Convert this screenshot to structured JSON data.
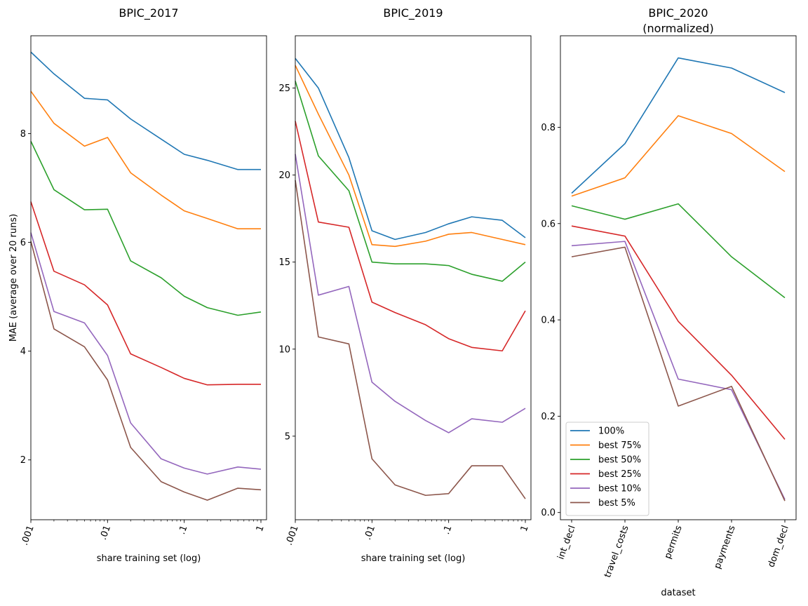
{
  "chart_data": [
    {
      "type": "line",
      "title": "BPIC_2017",
      "xlabel": "share training set (log)",
      "ylabel": "MAE (average over 20 runs)",
      "xscale": "log",
      "xlim": [
        0.001,
        1
      ],
      "ylim": [
        0.9,
        9.8
      ],
      "grid": false,
      "x": [
        0.001,
        0.002,
        0.005,
        0.01,
        0.02,
        0.05,
        0.1,
        0.2,
        0.5,
        1
      ],
      "xticks": [
        0.001,
        0.01,
        0.1,
        1
      ],
      "xtick_labels": [
        ".001",
        ".01",
        ".1",
        "1"
      ],
      "yticks": [
        2,
        4,
        6,
        8
      ],
      "ytick_labels": [
        "2",
        "4",
        "6",
        "8"
      ],
      "series": [
        {
          "name": "100%",
          "color": "#1f77b4",
          "values": [
            9.5,
            9.1,
            8.65,
            8.62,
            8.27,
            7.9,
            7.62,
            7.51,
            7.34,
            7.34
          ]
        },
        {
          "name": "best 75%",
          "color": "#ff7f0e",
          "values": [
            8.78,
            8.19,
            7.77,
            7.93,
            7.28,
            6.87,
            6.58,
            6.44,
            6.25,
            6.25
          ]
        },
        {
          "name": "best 50%",
          "color": "#2ca02c",
          "values": [
            7.86,
            6.97,
            6.6,
            6.61,
            5.66,
            5.35,
            5.01,
            4.8,
            4.66,
            4.72
          ]
        },
        {
          "name": "best 25%",
          "color": "#d62728",
          "values": [
            6.75,
            5.47,
            5.22,
            4.85,
            3.95,
            3.7,
            3.5,
            3.38,
            3.39,
            3.39
          ]
        },
        {
          "name": "best 10%",
          "color": "#9467bd",
          "values": [
            6.18,
            4.73,
            4.52,
            3.92,
            2.68,
            2.02,
            1.85,
            1.74,
            1.87,
            1.83
          ]
        },
        {
          "name": "best 5%",
          "color": "#8c564b",
          "values": [
            6.02,
            4.41,
            4.08,
            3.47,
            2.23,
            1.6,
            1.41,
            1.26,
            1.48,
            1.45
          ]
        }
      ]
    },
    {
      "type": "line",
      "title": "BPIC_2019",
      "xlabel": "share training set (log)",
      "ylabel": "",
      "xscale": "log",
      "xlim": [
        0.001,
        1
      ],
      "ylim": [
        0.2,
        28.0
      ],
      "grid": false,
      "x": [
        0.001,
        0.002,
        0.005,
        0.01,
        0.02,
        0.05,
        0.1,
        0.2,
        0.5,
        1
      ],
      "xticks": [
        0.001,
        0.01,
        0.1,
        1
      ],
      "xtick_labels": [
        ".001",
        ".01",
        ".1",
        "1"
      ],
      "yticks": [
        5,
        10,
        15,
        20,
        25
      ],
      "ytick_labels": [
        "5",
        "10",
        "15",
        "20",
        "25"
      ],
      "series": [
        {
          "name": "100%",
          "color": "#1f77b4",
          "values": [
            26.7,
            25.0,
            21.0,
            16.8,
            16.3,
            16.7,
            17.2,
            17.6,
            17.4,
            16.4
          ]
        },
        {
          "name": "best 75%",
          "color": "#ff7f0e",
          "values": [
            26.3,
            23.5,
            20.0,
            16.0,
            15.9,
            16.2,
            16.6,
            16.7,
            16.3,
            16.0
          ]
        },
        {
          "name": "best 50%",
          "color": "#2ca02c",
          "values": [
            25.4,
            21.1,
            19.1,
            15.0,
            14.9,
            14.9,
            14.8,
            14.3,
            13.9,
            15.0
          ]
        },
        {
          "name": "best 25%",
          "color": "#d62728",
          "values": [
            23.1,
            17.3,
            17.0,
            12.7,
            12.1,
            11.4,
            10.6,
            10.1,
            9.9,
            12.2
          ]
        },
        {
          "name": "best 10%",
          "color": "#9467bd",
          "values": [
            21.2,
            13.1,
            13.6,
            8.1,
            7.0,
            5.9,
            5.2,
            6.0,
            5.8,
            6.6
          ]
        },
        {
          "name": "best 5%",
          "color": "#8c564b",
          "values": [
            19.7,
            10.7,
            10.3,
            3.7,
            2.2,
            1.6,
            1.7,
            3.3,
            3.3,
            1.4
          ]
        }
      ]
    },
    {
      "type": "line",
      "title": "BPIC_2020",
      "subtitle": "(normalized)",
      "xlabel": "dataset",
      "ylabel": "",
      "ylim": [
        -0.015,
        0.99
      ],
      "grid": false,
      "categories": [
        "int_decl",
        "travel_costs",
        "permits",
        "payments",
        "dom_decl"
      ],
      "yticks": [
        0.0,
        0.2,
        0.4,
        0.6,
        0.8
      ],
      "ytick_labels": [
        "0.0",
        "0.2",
        "0.4",
        "0.6",
        "0.8"
      ],
      "legend_position": "lower-left",
      "series": [
        {
          "name": "100%",
          "color": "#1f77b4",
          "values": [
            0.663,
            0.766,
            0.944,
            0.923,
            0.872
          ]
        },
        {
          "name": "best 75%",
          "color": "#ff7f0e",
          "values": [
            0.657,
            0.695,
            0.824,
            0.787,
            0.708
          ]
        },
        {
          "name": "best 50%",
          "color": "#2ca02c",
          "values": [
            0.637,
            0.609,
            0.641,
            0.531,
            0.446
          ]
        },
        {
          "name": "best 25%",
          "color": "#d62728",
          "values": [
            0.595,
            0.574,
            0.397,
            0.285,
            0.152
          ]
        },
        {
          "name": "best 10%",
          "color": "#9467bd",
          "values": [
            0.554,
            0.563,
            0.277,
            0.255,
            0.027
          ]
        },
        {
          "name": "best 5%",
          "color": "#8c564b",
          "values": [
            0.531,
            0.551,
            0.221,
            0.262,
            0.024
          ]
        }
      ]
    }
  ]
}
